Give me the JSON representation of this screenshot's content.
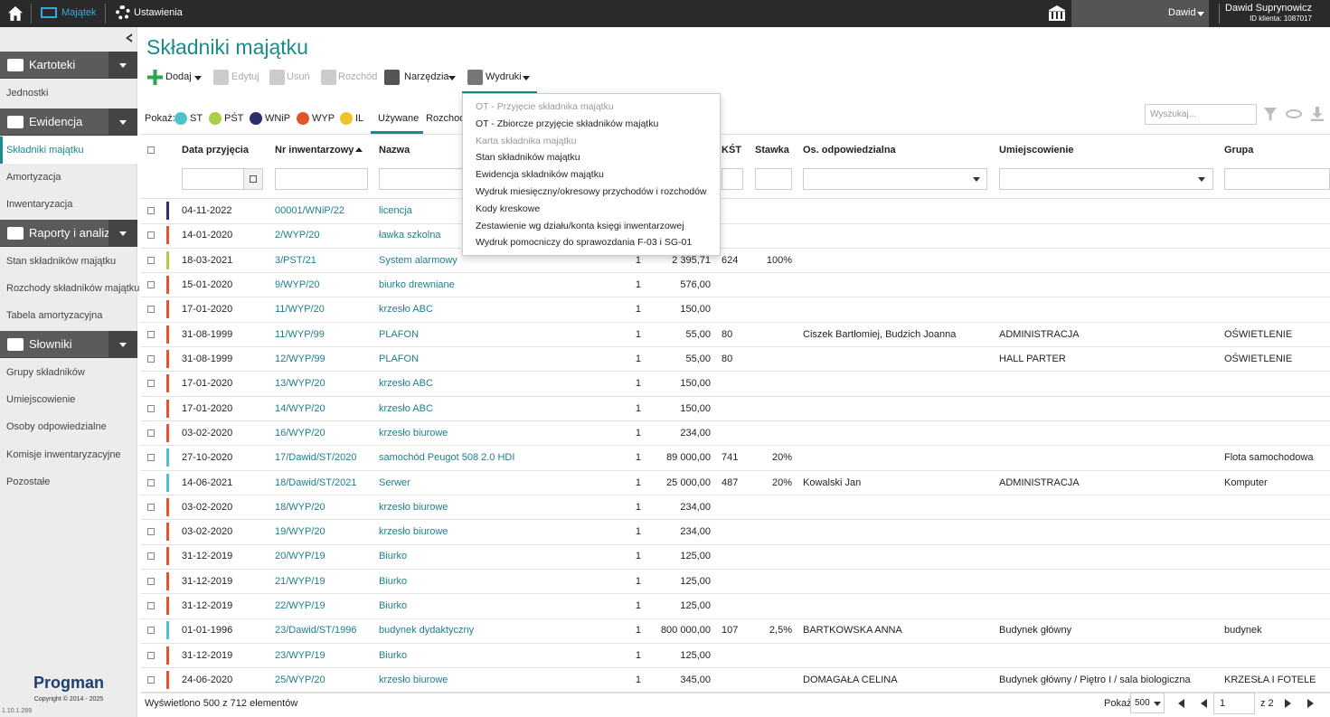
{
  "topbar": {
    "nav": [
      "Majątek",
      "Ustawienia"
    ],
    "user_menu": "Dawid",
    "user_name": "Dawid Suprynowicz",
    "client_id": "ID klienta: 1087017"
  },
  "sidebar": {
    "sections": [
      {
        "title": "Kartoteki",
        "items": [
          "Jednostki"
        ]
      },
      {
        "title": "Ewidencja",
        "items": [
          "Składniki majątku",
          "Amortyzacja",
          "Inwentaryzacja"
        ]
      },
      {
        "title": "Raporty i analizy",
        "items": [
          "Stan składników majątku",
          "Rozchody składników majątku",
          "Tabela amortyzacyjna"
        ]
      },
      {
        "title": "Słowniki",
        "items": [
          "Grupy składników",
          "Umiejscowienie",
          "Osoby odpowiedzialne",
          "Komisje inwentaryzacyjne",
          "Pozostałe"
        ]
      }
    ],
    "brand": "Progman",
    "copyright": "Copyright © 2014 - 2025",
    "version": "1.10.1.289"
  },
  "header": {
    "title": "Składniki majątku"
  },
  "toolbar": [
    "Dodaj",
    "Edytuj",
    "Usuń",
    "Rozchód",
    "Narzędzia",
    "Wydruki"
  ],
  "filters": {
    "label": "Pokaż:",
    "chips": [
      {
        "label": "ST",
        "color": "#4fc3c9"
      },
      {
        "label": "PŚT",
        "color": "#a8cf45"
      },
      {
        "label": "WNiP",
        "color": "#2c2f6e"
      },
      {
        "label": "WYP",
        "color": "#e0552b"
      },
      {
        "label": "IL",
        "color": "#f2c12e"
      }
    ],
    "tabs": [
      "Używane",
      "Rozchodowane"
    ],
    "search_placeholder": "Wyszukaj..."
  },
  "dropdown": [
    "OT - Przyjęcie składnika majątku",
    "OT - Zbiorcze przyjęcie składników majątku",
    "Karta składnika majątku",
    "Stan składników majątku",
    "Ewidencja składników majątku",
    "Wydruk miesięczny/okresowy przychodów i rozchodów",
    "Kody kreskowe",
    "Zestawienie wg działu/konta księgi inwentarzowej",
    "Wydruk pomocniczy do sprawozdania F-03 i SG-01"
  ],
  "table": {
    "headers": [
      "Data przyjęcia",
      "Nr inwentarzowy",
      "Nazwa",
      null,
      null,
      "KŚT",
      "Stawka",
      "Os. odpowiedzialna",
      "Umiejscowienie",
      "Grupa"
    ],
    "rows": [
      {
        "color": "#2c2f6e",
        "cells": [
          "04-11-2022",
          "00001/WNiP/22",
          "licencja",
          null,
          null,
          null,
          null,
          null,
          null,
          null
        ]
      },
      {
        "color": "#e0552b",
        "cells": [
          "14-01-2020",
          "2/WYP/20",
          "ławka szkolna",
          null,
          null,
          null,
          null,
          null,
          null,
          null
        ]
      },
      {
        "color": "#a8cf45",
        "cells": [
          "18-03-2021",
          "3/PST/21",
          "System alarmowy",
          "1",
          "2 395,71",
          "624",
          "100%",
          null,
          null,
          null
        ]
      },
      {
        "color": "#e0552b",
        "cells": [
          "15-01-2020",
          "9/WYP/20",
          "biurko drewniane",
          "1",
          "576,00",
          null,
          null,
          null,
          null,
          null
        ]
      },
      {
        "color": "#e0552b",
        "cells": [
          "17-01-2020",
          "11/WYP/20",
          "krzesło ABC",
          "1",
          "150,00",
          null,
          null,
          null,
          null,
          null
        ]
      },
      {
        "color": "#e0552b",
        "cells": [
          "31-08-1999",
          "11/WYP/99",
          "PLAFON",
          "1",
          "55,00",
          "80",
          null,
          "Ciszek Bartłomiej, Budzich Joanna",
          "ADMINISTRACJA",
          "OŚWIETLENIE"
        ]
      },
      {
        "color": "#e0552b",
        "cells": [
          "31-08-1999",
          "12/WYP/99",
          "PLAFON",
          "1",
          "55,00",
          "80",
          null,
          null,
          "HALL PARTER",
          "OŚWIETLENIE"
        ]
      },
      {
        "color": "#e0552b",
        "cells": [
          "17-01-2020",
          "13/WYP/20",
          "krzesło ABC",
          "1",
          "150,00",
          null,
          null,
          null,
          null,
          null
        ]
      },
      {
        "color": "#e0552b",
        "cells": [
          "17-01-2020",
          "14/WYP/20",
          "krzesło ABC",
          "1",
          "150,00",
          null,
          null,
          null,
          null,
          null
        ]
      },
      {
        "color": "#e0552b",
        "cells": [
          "03-02-2020",
          "16/WYP/20",
          "krzesło biurowe",
          "1",
          "234,00",
          null,
          null,
          null,
          null,
          null
        ]
      },
      {
        "color": "#4fc3c9",
        "cells": [
          "27-10-2020",
          "17/Dawid/ST/2020",
          "samochód Peugot 508 2.0 HDI",
          "1",
          "89 000,00",
          "741",
          "20%",
          null,
          null,
          "Flota samochodowa"
        ]
      },
      {
        "color": "#4fc3c9",
        "cells": [
          "14-06-2021",
          "18/Dawid/ST/2021",
          "Serwer",
          "1",
          "25 000,00",
          "487",
          "20%",
          "Kowalski Jan",
          "ADMINISTRACJA",
          "Komputer"
        ]
      },
      {
        "color": "#e0552b",
        "cells": [
          "03-02-2020",
          "18/WYP/20",
          "krzesło biurowe",
          "1",
          "234,00",
          null,
          null,
          null,
          null,
          null
        ]
      },
      {
        "color": "#e0552b",
        "cells": [
          "03-02-2020",
          "19/WYP/20",
          "krzesło biurowe",
          "1",
          "234,00",
          null,
          null,
          null,
          null,
          null
        ]
      },
      {
        "color": "#e0552b",
        "cells": [
          "31-12-2019",
          "20/WYP/19",
          "Biurko",
          "1",
          "125,00",
          null,
          null,
          null,
          null,
          null
        ]
      },
      {
        "color": "#e0552b",
        "cells": [
          "31-12-2019",
          "21/WYP/19",
          "Biurko",
          "1",
          "125,00",
          null,
          null,
          null,
          null,
          null
        ]
      },
      {
        "color": "#e0552b",
        "cells": [
          "31-12-2019",
          "22/WYP/19",
          "Biurko",
          "1",
          "125,00",
          null,
          null,
          null,
          null,
          null
        ]
      },
      {
        "color": "#4fc3c9",
        "cells": [
          "01-01-1996",
          "23/Dawid/ST/1996",
          "budynek dydaktyczny",
          "1",
          "800 000,00",
          "107",
          "2,5%",
          "BARTKOWSKA ANNA",
          "Budynek główny",
          "budynek"
        ]
      },
      {
        "color": "#e0552b",
        "cells": [
          "31-12-2019",
          "23/WYP/19",
          "Biurko",
          "1",
          "125,00",
          null,
          null,
          null,
          null,
          null
        ]
      },
      {
        "color": "#e0552b",
        "cells": [
          "24-06-2020",
          "25/WYP/20",
          "krzesło biurowe",
          "1",
          "345,00",
          null,
          null,
          "DOMAGAŁA CELINA",
          "Budynek główny / Piętro I / sala biologiczna",
          "KRZESŁA I FOTELE"
        ]
      }
    ]
  },
  "footer": {
    "summary": "Wyświetlono 500 z 712 elementów",
    "page_size_label": "Pokaż",
    "page_size": "500",
    "page": "1",
    "page_count": "z 2"
  }
}
